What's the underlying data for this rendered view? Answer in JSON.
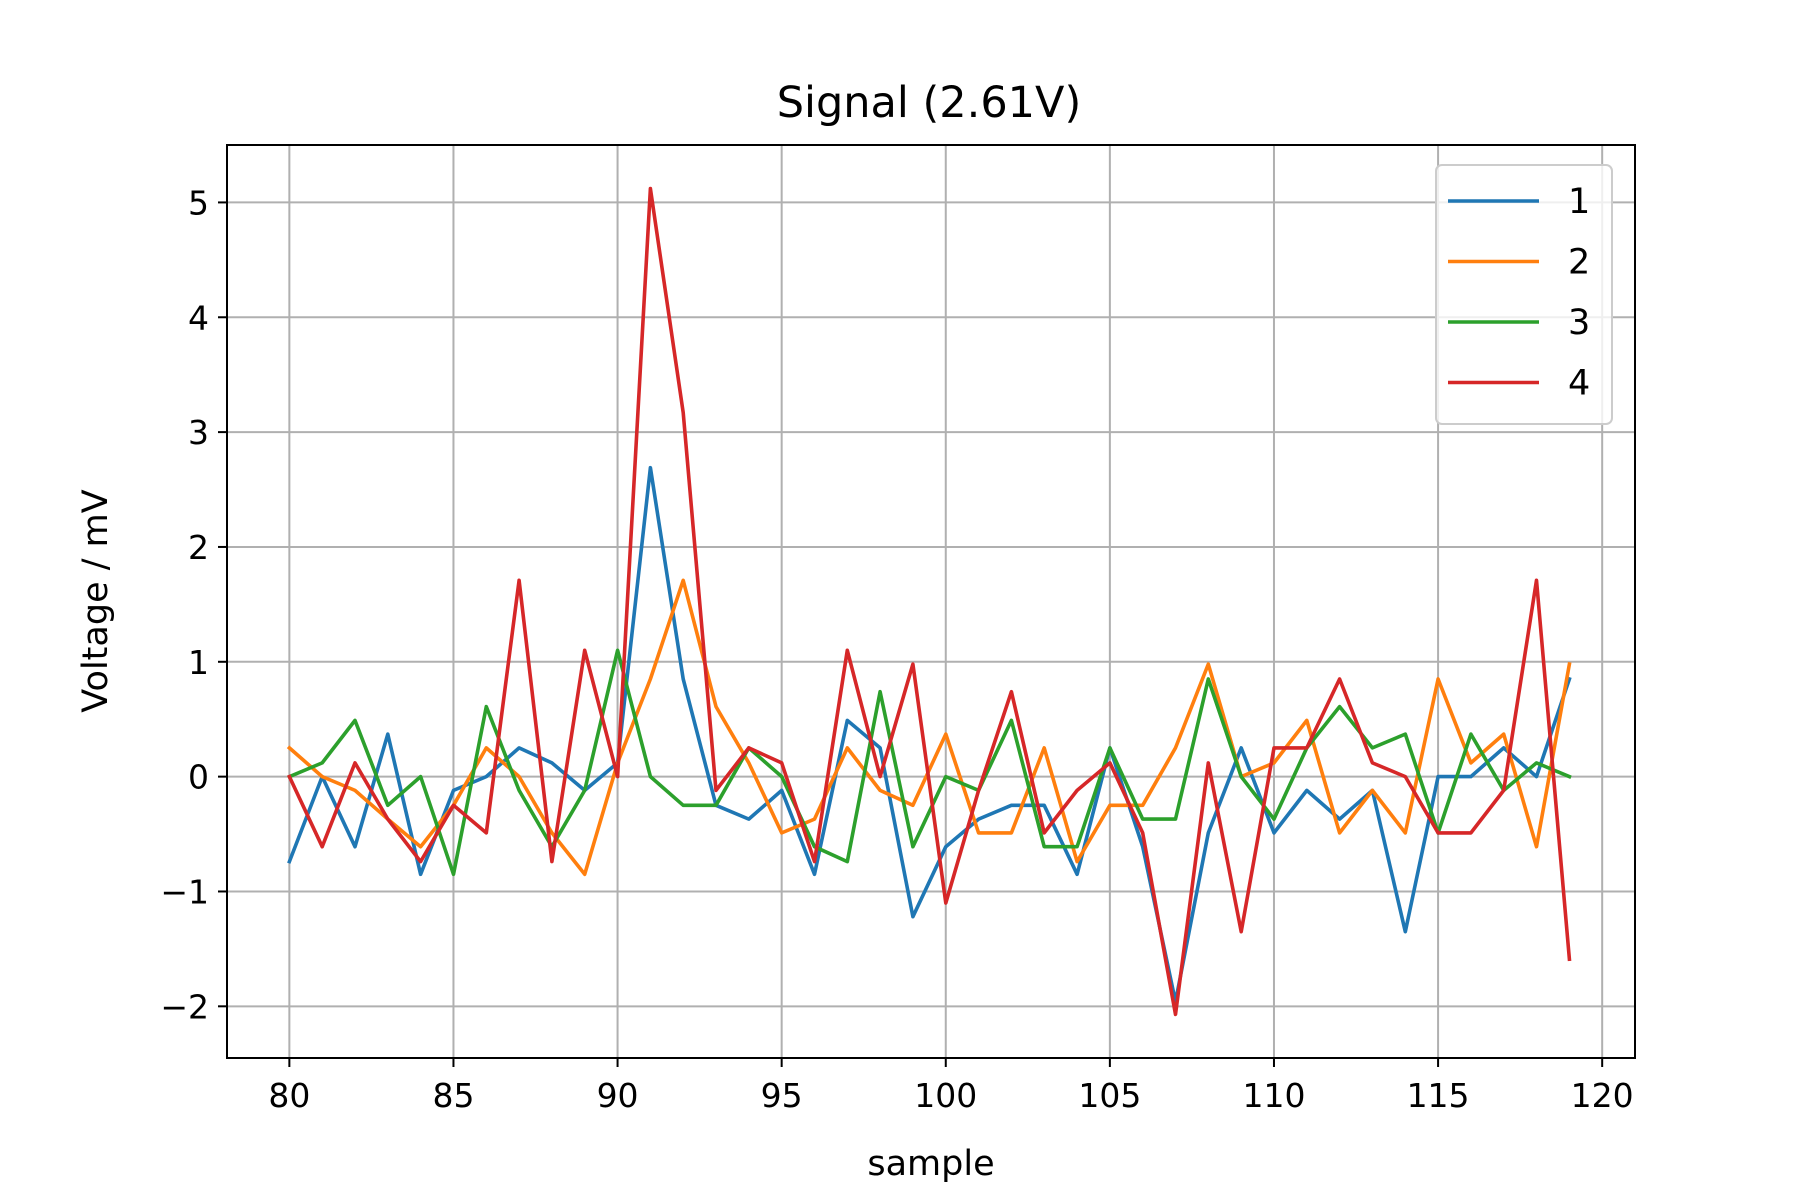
{
  "chart_data": {
    "type": "line",
    "title": "Signal (2.61V)",
    "xlabel": "sample",
    "ylabel": "Voltage / mV",
    "xlim": [
      78.1,
      121.0
    ],
    "ylim": [
      -2.45,
      5.5
    ],
    "xticks": [
      80,
      85,
      90,
      95,
      100,
      105,
      110,
      115,
      120
    ],
    "xtick_labels": [
      "80",
      "85",
      "90",
      "95",
      "100",
      "105",
      "110",
      "115",
      "120"
    ],
    "yticks": [
      -2,
      -1,
      0,
      1,
      2,
      3,
      4,
      5
    ],
    "ytick_labels": [
      "−2",
      "−1",
      "0",
      "1",
      "2",
      "3",
      "4",
      "5"
    ],
    "grid": true,
    "legend_position": "top-right",
    "x": [
      80,
      81,
      82,
      83,
      84,
      85,
      86,
      87,
      88,
      89,
      90,
      91,
      92,
      93,
      94,
      95,
      96,
      97,
      98,
      99,
      100,
      101,
      102,
      103,
      104,
      105,
      106,
      107,
      108,
      109,
      110,
      111,
      112,
      113,
      114,
      115,
      116,
      117,
      118,
      119
    ],
    "series": [
      {
        "name": "1",
        "color": "#1f77b4",
        "values": [
          -0.74,
          0.0,
          -0.61,
          0.37,
          -0.85,
          -0.12,
          0.0,
          0.25,
          0.12,
          -0.12,
          0.12,
          2.69,
          0.85,
          -0.25,
          -0.37,
          -0.12,
          -0.85,
          0.49,
          0.25,
          -1.22,
          -0.61,
          -0.37,
          -0.25,
          -0.25,
          -0.85,
          0.25,
          -0.61,
          -1.96,
          -0.49,
          0.25,
          -0.49,
          -0.12,
          -0.37,
          -0.12,
          -1.35,
          0.0,
          0.0,
          0.25,
          0.0,
          0.85
        ]
      },
      {
        "name": "2",
        "color": "#ff7f0e",
        "values": [
          0.25,
          0.0,
          -0.12,
          -0.37,
          -0.61,
          -0.25,
          0.25,
          0.0,
          -0.49,
          -0.85,
          0.12,
          0.85,
          1.71,
          0.61,
          0.12,
          -0.49,
          -0.37,
          0.25,
          -0.12,
          -0.25,
          0.37,
          -0.49,
          -0.49,
          0.25,
          -0.74,
          -0.25,
          -0.25,
          0.25,
          0.98,
          0.0,
          0.12,
          0.49,
          -0.49,
          -0.12,
          -0.49,
          0.85,
          0.12,
          0.37,
          -0.61,
          0.98
        ]
      },
      {
        "name": "3",
        "color": "#2ca02c",
        "values": [
          0.0,
          0.12,
          0.49,
          -0.25,
          0.0,
          -0.85,
          0.61,
          -0.12,
          -0.61,
          -0.12,
          1.1,
          0.0,
          -0.25,
          -0.25,
          0.25,
          0.0,
          -0.61,
          -0.74,
          0.74,
          -0.61,
          0.0,
          -0.12,
          0.49,
          -0.61,
          -0.61,
          0.25,
          -0.37,
          -0.37,
          0.85,
          0.0,
          -0.37,
          0.25,
          0.61,
          0.25,
          0.37,
          -0.49,
          0.37,
          -0.12,
          0.12,
          0.0
        ]
      },
      {
        "name": "4",
        "color": "#d62728",
        "values": [
          0.0,
          -0.61,
          0.12,
          -0.37,
          -0.74,
          -0.25,
          -0.49,
          1.71,
          -0.74,
          1.1,
          0.0,
          5.12,
          3.17,
          -0.12,
          0.25,
          0.12,
          -0.74,
          1.1,
          0.0,
          0.98,
          -1.1,
          -0.12,
          0.74,
          -0.49,
          -0.12,
          0.12,
          -0.49,
          -2.07,
          0.12,
          -1.35,
          0.25,
          0.25,
          0.85,
          0.12,
          0.0,
          -0.49,
          -0.49,
          -0.12,
          1.71,
          -1.59
        ]
      }
    ]
  }
}
